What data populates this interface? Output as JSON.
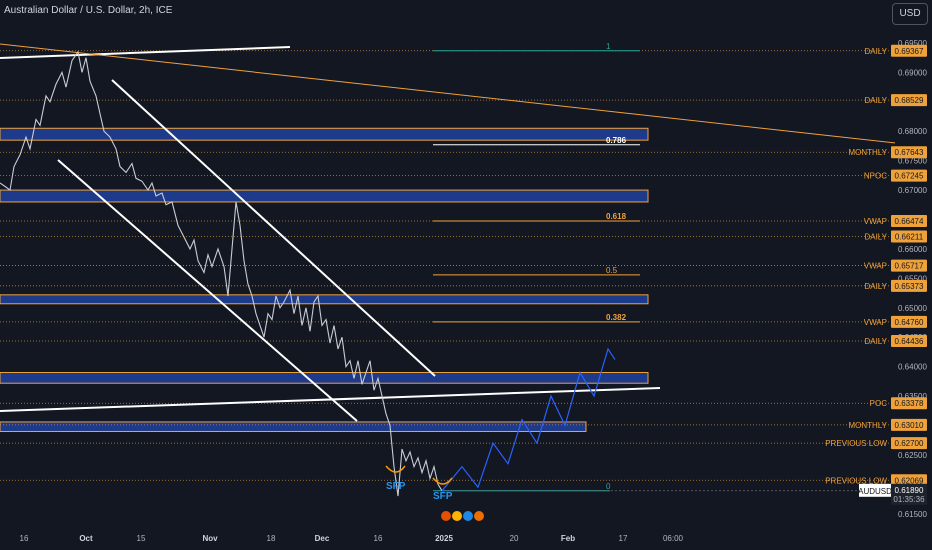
{
  "header": {
    "title": "Australian Dollar / U.S. Dollar, 2h, ICE",
    "currency_button": "USD"
  },
  "colors": {
    "bg": "#131722",
    "grid": "#f0a23a",
    "price_line": "#c9ccd4",
    "white": "#ffffff",
    "zone_fill": "#1e3a8a",
    "zone_border": "#f0a23a",
    "orange": "#f0a23a",
    "teal": "#26a69a",
    "projection": "#2962ff",
    "sfp": "#2196f3",
    "axis_text": "#b2b5be"
  },
  "chart_data": {
    "type": "line",
    "title": "Australian Dollar / U.S. Dollar, 2h, ICE",
    "symbol": "AUDUSD",
    "last_price": 0.6189,
    "countdown": "01:35:36",
    "ylim": [
      0.6136,
      0.6972
    ],
    "y_ticks": [
      "0.69500",
      "0.69000",
      "0.68500",
      "0.68000",
      "0.67500",
      "0.67000",
      "0.66500",
      "0.66000",
      "0.65500",
      "0.65000",
      "0.64500",
      "0.64000",
      "0.63500",
      "0.63000",
      "0.62500",
      "0.62000",
      "0.61500"
    ],
    "x_ticks": [
      "16",
      "Oct",
      "15",
      "Nov",
      "18",
      "Dec",
      "16",
      "2025",
      "20",
      "Feb",
      "17",
      "06:00"
    ],
    "x_tick_bold": [
      "Oct",
      "Nov",
      "Dec",
      "2025",
      "Feb"
    ],
    "price_path": [
      [
        0,
        0.6712
      ],
      [
        6,
        0.6705
      ],
      [
        10,
        0.67
      ],
      [
        14,
        0.674
      ],
      [
        20,
        0.676
      ],
      [
        26,
        0.679
      ],
      [
        30,
        0.677
      ],
      [
        36,
        0.682
      ],
      [
        40,
        0.681
      ],
      [
        46,
        0.686
      ],
      [
        50,
        0.685
      ],
      [
        56,
        0.688
      ],
      [
        62,
        0.69
      ],
      [
        66,
        0.6875
      ],
      [
        72,
        0.692
      ],
      [
        78,
        0.6935
      ],
      [
        82,
        0.69
      ],
      [
        86,
        0.6925
      ],
      [
        90,
        0.6885
      ],
      [
        96,
        0.686
      ],
      [
        100,
        0.683
      ],
      [
        104,
        0.68
      ],
      [
        110,
        0.679
      ],
      [
        116,
        0.677
      ],
      [
        120,
        0.674
      ],
      [
        126,
        0.673
      ],
      [
        132,
        0.6745
      ],
      [
        136,
        0.672
      ],
      [
        142,
        0.6715
      ],
      [
        148,
        0.67
      ],
      [
        152,
        0.6712
      ],
      [
        156,
        0.669
      ],
      [
        162,
        0.6695
      ],
      [
        166,
        0.6675
      ],
      [
        172,
        0.668
      ],
      [
        178,
        0.664
      ],
      [
        184,
        0.662
      ],
      [
        190,
        0.66
      ],
      [
        194,
        0.6615
      ],
      [
        198,
        0.658
      ],
      [
        204,
        0.656
      ],
      [
        208,
        0.659
      ],
      [
        212,
        0.657
      ],
      [
        218,
        0.66
      ],
      [
        224,
        0.657
      ],
      [
        228,
        0.652
      ],
      [
        232,
        0.66
      ],
      [
        236,
        0.668
      ],
      [
        240,
        0.664
      ],
      [
        244,
        0.658
      ],
      [
        248,
        0.654
      ],
      [
        252,
        0.652
      ],
      [
        256,
        0.649
      ],
      [
        260,
        0.647
      ],
      [
        264,
        0.645
      ],
      [
        268,
        0.649
      ],
      [
        272,
        0.648
      ],
      [
        276,
        0.652
      ],
      [
        280,
        0.65
      ],
      [
        284,
        0.651
      ],
      [
        290,
        0.653
      ],
      [
        294,
        0.649
      ],
      [
        298,
        0.652
      ],
      [
        302,
        0.647
      ],
      [
        306,
        0.65
      ],
      [
        310,
        0.646
      ],
      [
        314,
        0.651
      ],
      [
        318,
        0.652
      ],
      [
        322,
        0.647
      ],
      [
        326,
        0.648
      ],
      [
        330,
        0.644
      ],
      [
        334,
        0.647
      ],
      [
        338,
        0.643
      ],
      [
        342,
        0.645
      ],
      [
        346,
        0.64
      ],
      [
        350,
        0.641
      ],
      [
        354,
        0.638
      ],
      [
        358,
        0.641
      ],
      [
        362,
        0.637
      ],
      [
        366,
        0.639
      ],
      [
        370,
        0.641
      ],
      [
        374,
        0.636
      ],
      [
        378,
        0.638
      ],
      [
        382,
        0.635
      ],
      [
        386,
        0.632
      ],
      [
        390,
        0.63
      ],
      [
        394,
        0.623
      ],
      [
        398,
        0.618
      ],
      [
        402,
        0.626
      ],
      [
        406,
        0.624
      ],
      [
        410,
        0.6255
      ],
      [
        414,
        0.623
      ],
      [
        418,
        0.6245
      ],
      [
        422,
        0.622
      ],
      [
        426,
        0.624
      ],
      [
        430,
        0.621
      ],
      [
        434,
        0.623
      ],
      [
        438,
        0.62
      ],
      [
        442,
        0.6189
      ]
    ],
    "projection_path": [
      [
        442,
        0.6189
      ],
      [
        462,
        0.623
      ],
      [
        478,
        0.6195
      ],
      [
        493,
        0.627
      ],
      [
        508,
        0.6235
      ],
      [
        522,
        0.631
      ],
      [
        537,
        0.627
      ],
      [
        551,
        0.635
      ],
      [
        565,
        0.63
      ],
      [
        580,
        0.639
      ],
      [
        594,
        0.635
      ],
      [
        608,
        0.643
      ],
      [
        615,
        0.6412
      ]
    ],
    "key_levels": [
      {
        "label": "DAILY",
        "value": "0.69367",
        "price": 0.69367
      },
      {
        "label": "DAILY",
        "value": "0.68529",
        "price": 0.68529
      },
      {
        "label": "MONTHLY",
        "value": "0.67643",
        "price": 0.67643
      },
      {
        "label": "NPOC",
        "value": "0.67245",
        "price": 0.67245
      },
      {
        "label": "VWAP",
        "value": "0.66474",
        "price": 0.66474
      },
      {
        "label": "DAILY",
        "value": "0.66211",
        "price": 0.66211
      },
      {
        "label": "VWAP",
        "value": "0.65717",
        "price": 0.65717
      },
      {
        "label": "DAILY",
        "value": "0.65373",
        "price": 0.65373
      },
      {
        "label": "VWAP",
        "value": "0.64760",
        "price": 0.6476
      },
      {
        "label": "DAILY",
        "value": "0.64436",
        "price": 0.64436
      },
      {
        "label": "POC",
        "value": "0.63378",
        "price": 0.63378
      },
      {
        "label": "MONTHLY",
        "value": "0.63010",
        "price": 0.6301
      },
      {
        "label": "PREVIOUS LOW",
        "value": "0.62700",
        "price": 0.627
      },
      {
        "label": "PREVIOUS LOW",
        "value": "0.62069",
        "price": 0.62069
      }
    ],
    "zones": [
      {
        "top": 0.6805,
        "bottom": 0.6795
      },
      {
        "top": 0.67,
        "bottom": 0.669
      },
      {
        "top": 0.6522,
        "bottom": 0.6517
      },
      {
        "top": 0.639,
        "bottom": 0.6382
      },
      {
        "top": 0.6306,
        "bottom": 0.63
      }
    ],
    "fib": [
      {
        "label": "1",
        "price": 0.69367,
        "color": "teal"
      },
      {
        "label": "0.786",
        "price": 0.6777,
        "color": "white"
      },
      {
        "label": "0.618",
        "price": 0.66474,
        "color": "orange"
      },
      {
        "label": "0.5",
        "price": 0.6556,
        "color": "orange"
      },
      {
        "label": "0.382",
        "price": 0.6476,
        "color": "orange"
      },
      {
        "label": "0",
        "price": 0.6189,
        "color": "teal"
      }
    ],
    "annotations": [
      "SFP",
      "SFP"
    ]
  }
}
